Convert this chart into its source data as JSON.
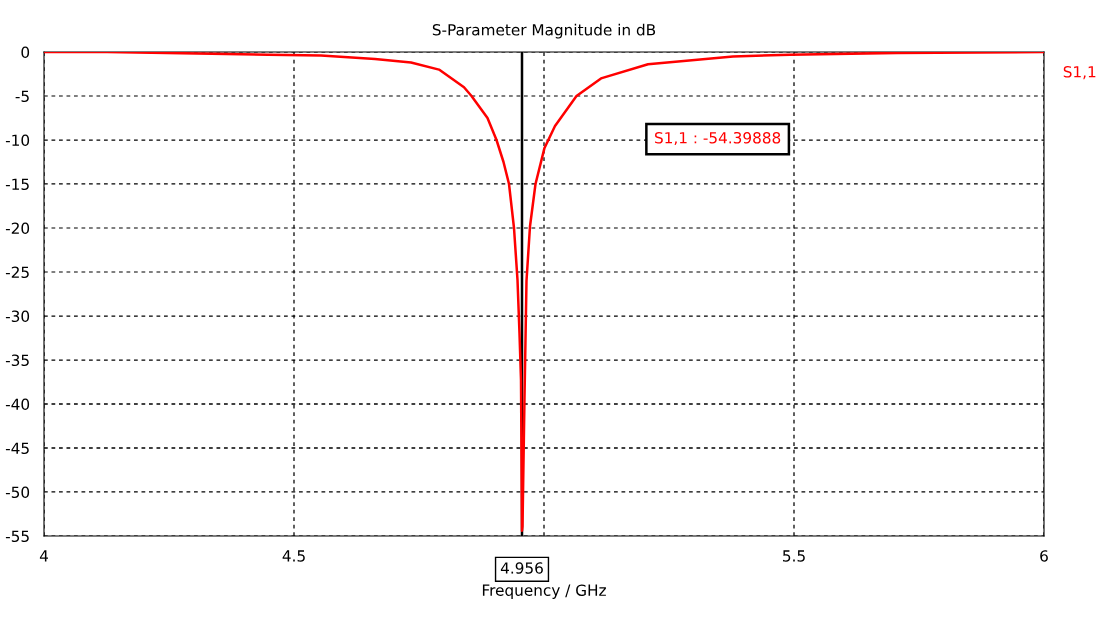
{
  "chart_data": {
    "type": "line",
    "title": "S-Parameter Magnitude in dB",
    "xlabel": "Frequency / GHz",
    "xlim": [
      4,
      6
    ],
    "xticks": [
      4,
      4.5,
      {
        "value": 5,
        "label": null
      },
      5.5,
      6
    ],
    "ylim": [
      -55,
      0
    ],
    "yticks": [
      -55,
      -50,
      -45,
      -40,
      -35,
      -30,
      -25,
      -20,
      -15,
      -10,
      -5,
      0
    ],
    "grid": true,
    "legend": "right",
    "line_style": "solid",
    "marker": "none",
    "x": [
      4.0,
      4.126,
      4.448,
      4.554,
      4.662,
      4.734,
      4.79,
      4.84,
      4.855,
      4.887,
      4.905,
      4.919,
      4.93,
      4.94,
      4.947,
      4.951,
      4.954,
      4.956,
      4.957,
      4.961,
      4.965,
      4.972,
      4.983,
      5.001,
      5.022,
      5.065,
      5.114,
      5.208,
      5.378,
      5.492,
      5.706,
      6.0
    ],
    "series": [
      {
        "name": "S1,1",
        "color": "#ff0000",
        "values": [
          0,
          0,
          -0.3,
          -0.4,
          -0.8,
          -1.2,
          -2.0,
          -4.0,
          -5,
          -7.5,
          -10,
          -12.5,
          -15,
          -20,
          -25.9,
          -32,
          -37.3,
          -54.4,
          -53.9,
          -39.3,
          -26,
          -19.8,
          -15,
          -10.9,
          -8.4,
          -5,
          -3.0,
          -1.4,
          -0.5,
          -0.3,
          -0.1,
          0
        ]
      }
    ],
    "ref_lines": [
      {
        "axis": "x",
        "value": 4.956,
        "label": "4.956",
        "color": "#000000",
        "line_style": "solid"
      }
    ],
    "annotations": [
      "S1,1 : -54.39888"
    ]
  }
}
